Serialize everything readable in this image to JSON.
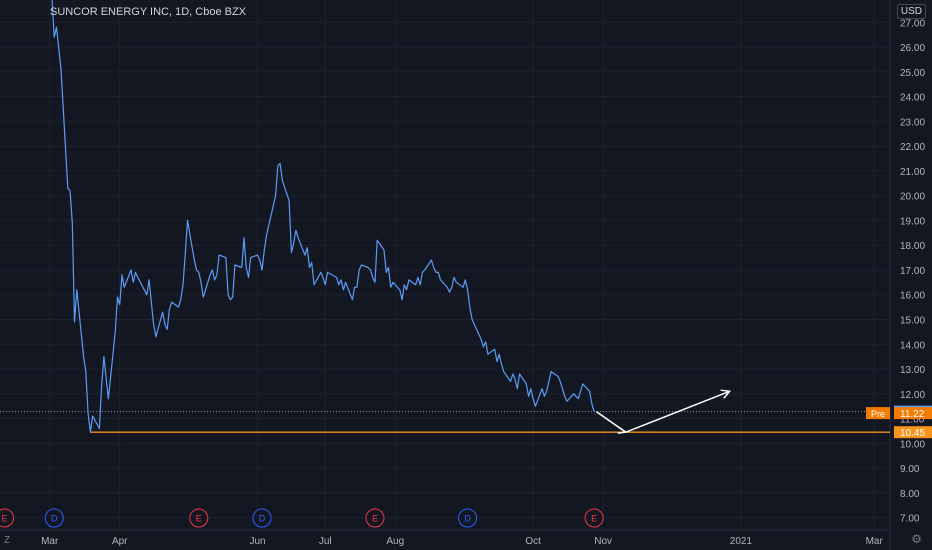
{
  "header": {
    "title": "SUNCOR ENERGY INC, 1D, Cboe BZX",
    "currency": "USD"
  },
  "corner": {
    "left_label": "Z",
    "right_icon": "gear-icon"
  },
  "colors": {
    "background": "#131722",
    "line": "#5b9cf6",
    "support": "#f7931a",
    "arrow": "#ffffff",
    "grid": "#1e222d",
    "axis_text": "#b2b5be",
    "dividend": "#2962ff",
    "earnings": "#f23645",
    "last_price": "#5b9cf6",
    "pre_market": "#f57c00"
  },
  "chart_data": {
    "type": "line",
    "title": "SUNCOR ENERGY INC, 1D, Cboe BZX",
    "xlabel": "",
    "ylabel": "",
    "y_ticks": [
      "7.00",
      "8.00",
      "9.00",
      "10.00",
      "11.00",
      "12.00",
      "13.00",
      "14.00",
      "15.00",
      "16.00",
      "17.00",
      "18.00",
      "19.00",
      "20.00",
      "21.00",
      "22.00",
      "23.00",
      "24.00",
      "25.00",
      "26.00",
      "27.00"
    ],
    "ylim": [
      6.5,
      27.9
    ],
    "x_ticks": [
      "Mar",
      "Apr",
      "Jun",
      "Jul",
      "Aug",
      "Oct",
      "Nov",
      "2021",
      "Mar"
    ],
    "x_tick_dates": [
      "2020-03-01",
      "2020-04-01",
      "2020-06-01",
      "2020-07-01",
      "2020-08-01",
      "2020-10-01",
      "2020-11-01",
      "2021-01-01",
      "2021-03-01"
    ],
    "xlim": [
      "2020-02-08",
      "2021-03-08"
    ],
    "grid": true,
    "series": [
      {
        "values": [
          [
            "2020-03-02",
            28.0
          ],
          [
            "2020-03-03",
            26.4
          ],
          [
            "2020-03-04",
            26.8
          ],
          [
            "2020-03-06",
            25.1
          ],
          [
            "2020-03-09",
            20.3
          ],
          [
            "2020-03-10",
            20.2
          ],
          [
            "2020-03-11",
            18.9
          ],
          [
            "2020-03-12",
            14.9
          ],
          [
            "2020-03-13",
            16.2
          ],
          [
            "2020-03-16",
            13.5
          ],
          [
            "2020-03-17",
            12.9
          ],
          [
            "2020-03-18",
            11.2
          ],
          [
            "2020-03-19",
            10.45
          ],
          [
            "2020-03-20",
            11.1
          ],
          [
            "2020-03-23",
            10.6
          ],
          [
            "2020-03-24",
            12.3
          ],
          [
            "2020-03-25",
            13.5
          ],
          [
            "2020-03-26",
            12.6
          ],
          [
            "2020-03-27",
            11.8
          ],
          [
            "2020-03-30",
            14.5
          ],
          [
            "2020-03-31",
            15.9
          ],
          [
            "2020-04-01",
            15.6
          ],
          [
            "2020-04-02",
            16.8
          ],
          [
            "2020-04-03",
            16.3
          ],
          [
            "2020-04-06",
            17.0
          ],
          [
            "2020-04-07",
            16.5
          ],
          [
            "2020-04-08",
            16.9
          ],
          [
            "2020-04-09",
            16.7
          ],
          [
            "2020-04-13",
            16.0
          ],
          [
            "2020-04-14",
            16.6
          ],
          [
            "2020-04-15",
            15.7
          ],
          [
            "2020-04-16",
            14.8
          ],
          [
            "2020-04-17",
            14.3
          ],
          [
            "2020-04-20",
            15.3
          ],
          [
            "2020-04-21",
            14.8
          ],
          [
            "2020-04-22",
            14.6
          ],
          [
            "2020-04-23",
            15.4
          ],
          [
            "2020-04-24",
            15.7
          ],
          [
            "2020-04-27",
            15.5
          ],
          [
            "2020-04-28",
            15.8
          ],
          [
            "2020-04-29",
            16.4
          ],
          [
            "2020-04-30",
            17.6
          ],
          [
            "2020-05-01",
            19.0
          ],
          [
            "2020-05-04",
            17.4
          ],
          [
            "2020-05-05",
            17.0
          ],
          [
            "2020-05-06",
            16.9
          ],
          [
            "2020-05-07",
            16.5
          ],
          [
            "2020-05-08",
            15.9
          ],
          [
            "2020-05-11",
            16.8
          ],
          [
            "2020-05-12",
            17.0
          ],
          [
            "2020-05-13",
            16.6
          ],
          [
            "2020-05-14",
            16.8
          ],
          [
            "2020-05-15",
            17.6
          ],
          [
            "2020-05-18",
            17.5
          ],
          [
            "2020-05-19",
            16.0
          ],
          [
            "2020-05-20",
            15.8
          ],
          [
            "2020-05-21",
            15.9
          ],
          [
            "2020-05-22",
            17.2
          ],
          [
            "2020-05-25",
            17.1
          ],
          [
            "2020-05-26",
            18.3
          ],
          [
            "2020-05-27",
            17.1
          ],
          [
            "2020-05-28",
            16.7
          ],
          [
            "2020-05-29",
            17.5
          ],
          [
            "2020-06-01",
            17.6
          ],
          [
            "2020-06-02",
            17.4
          ],
          [
            "2020-06-03",
            17.0
          ],
          [
            "2020-06-04",
            17.8
          ],
          [
            "2020-06-05",
            18.4
          ],
          [
            "2020-06-08",
            19.6
          ],
          [
            "2020-06-09",
            20.0
          ],
          [
            "2020-06-10",
            21.2
          ],
          [
            "2020-06-11",
            21.3
          ],
          [
            "2020-06-12",
            20.6
          ],
          [
            "2020-06-15",
            19.8
          ],
          [
            "2020-06-16",
            17.7
          ],
          [
            "2020-06-17",
            18.1
          ],
          [
            "2020-06-18",
            18.6
          ],
          [
            "2020-06-19",
            18.3
          ],
          [
            "2020-06-22",
            17.6
          ],
          [
            "2020-06-23",
            17.9
          ],
          [
            "2020-06-24",
            17.1
          ],
          [
            "2020-06-25",
            17.3
          ],
          [
            "2020-06-26",
            16.4
          ],
          [
            "2020-06-29",
            16.9
          ],
          [
            "2020-06-30",
            16.7
          ],
          [
            "2020-07-01",
            16.4
          ],
          [
            "2020-07-02",
            16.9
          ],
          [
            "2020-07-06",
            16.7
          ],
          [
            "2020-07-07",
            16.4
          ],
          [
            "2020-07-08",
            16.6
          ],
          [
            "2020-07-09",
            16.2
          ],
          [
            "2020-07-10",
            16.5
          ],
          [
            "2020-07-13",
            15.8
          ],
          [
            "2020-07-14",
            16.3
          ],
          [
            "2020-07-15",
            16.3
          ],
          [
            "2020-07-16",
            17.0
          ],
          [
            "2020-07-17",
            17.2
          ],
          [
            "2020-07-20",
            17.1
          ],
          [
            "2020-07-21",
            17.0
          ],
          [
            "2020-07-22",
            16.7
          ],
          [
            "2020-07-23",
            16.5
          ],
          [
            "2020-07-24",
            18.2
          ],
          [
            "2020-07-27",
            17.8
          ],
          [
            "2020-07-28",
            16.9
          ],
          [
            "2020-07-29",
            17.1
          ],
          [
            "2020-07-30",
            16.3
          ],
          [
            "2020-07-31",
            16.5
          ],
          [
            "2020-08-03",
            16.2
          ],
          [
            "2020-08-04",
            15.8
          ],
          [
            "2020-08-05",
            16.4
          ],
          [
            "2020-08-06",
            16.2
          ],
          [
            "2020-08-07",
            16.6
          ],
          [
            "2020-08-10",
            16.4
          ],
          [
            "2020-08-11",
            16.7
          ],
          [
            "2020-08-12",
            16.4
          ],
          [
            "2020-08-13",
            16.9
          ],
          [
            "2020-08-14",
            17.0
          ],
          [
            "2020-08-17",
            17.4
          ],
          [
            "2020-08-18",
            17.1
          ],
          [
            "2020-08-19",
            16.9
          ],
          [
            "2020-08-20",
            16.9
          ],
          [
            "2020-08-21",
            16.6
          ],
          [
            "2020-08-24",
            16.3
          ],
          [
            "2020-08-25",
            16.1
          ],
          [
            "2020-08-26",
            16.3
          ],
          [
            "2020-08-27",
            16.7
          ],
          [
            "2020-08-28",
            16.5
          ],
          [
            "2020-08-31",
            16.3
          ],
          [
            "2020-09-01",
            16.6
          ],
          [
            "2020-09-02",
            16.2
          ],
          [
            "2020-09-03",
            15.5
          ],
          [
            "2020-09-04",
            15.0
          ],
          [
            "2020-09-08",
            14.2
          ],
          [
            "2020-09-09",
            13.9
          ],
          [
            "2020-09-10",
            14.1
          ],
          [
            "2020-09-11",
            13.6
          ],
          [
            "2020-09-14",
            13.8
          ],
          [
            "2020-09-15",
            13.3
          ],
          [
            "2020-09-16",
            13.6
          ],
          [
            "2020-09-17",
            13.2
          ],
          [
            "2020-09-18",
            12.9
          ],
          [
            "2020-09-21",
            12.5
          ],
          [
            "2020-09-22",
            12.8
          ],
          [
            "2020-09-23",
            12.6
          ],
          [
            "2020-09-24",
            12.2
          ],
          [
            "2020-09-25",
            12.8
          ],
          [
            "2020-09-28",
            12.4
          ],
          [
            "2020-09-29",
            11.9
          ],
          [
            "2020-09-30",
            12.2
          ],
          [
            "2020-10-01",
            11.8
          ],
          [
            "2020-10-02",
            11.5
          ],
          [
            "2020-10-05",
            12.2
          ],
          [
            "2020-10-06",
            11.9
          ],
          [
            "2020-10-07",
            12.1
          ],
          [
            "2020-10-08",
            12.5
          ],
          [
            "2020-10-09",
            12.9
          ],
          [
            "2020-10-12",
            12.7
          ],
          [
            "2020-10-13",
            12.5
          ],
          [
            "2020-10-14",
            12.2
          ],
          [
            "2020-10-15",
            11.9
          ],
          [
            "2020-10-16",
            11.7
          ],
          [
            "2020-10-19",
            12.0
          ],
          [
            "2020-10-20",
            11.9
          ],
          [
            "2020-10-21",
            11.8
          ],
          [
            "2020-10-22",
            12.1
          ],
          [
            "2020-10-23",
            12.4
          ],
          [
            "2020-10-26",
            12.1
          ],
          [
            "2020-10-27",
            11.6
          ],
          [
            "2020-10-28",
            11.28
          ]
        ]
      }
    ],
    "horizontal_lines": [
      {
        "value": 10.45,
        "from": "2020-03-19",
        "to": "2021-03-08",
        "label": "10.45",
        "color": "#f7931a"
      }
    ],
    "price_labels": [
      {
        "value": 11.28,
        "label": "11.28",
        "color": "#5b9cf6",
        "style": "dotted"
      },
      {
        "value": 11.22,
        "label": "11.22",
        "prefix": "Pre",
        "color": "#f57c00"
      }
    ],
    "arrows": [
      {
        "points": [
          [
            "2020-10-29",
            11.28
          ],
          [
            "2020-11-11",
            10.45
          ],
          [
            "2020-12-27",
            12.1
          ]
        ],
        "color": "#ffffff"
      }
    ],
    "events": [
      {
        "type": "E",
        "date": "2020-02-10"
      },
      {
        "type": "D",
        "date": "2020-03-03"
      },
      {
        "type": "E",
        "date": "2020-05-06"
      },
      {
        "type": "D",
        "date": "2020-06-03"
      },
      {
        "type": "E",
        "date": "2020-07-23"
      },
      {
        "type": "D",
        "date": "2020-09-02"
      },
      {
        "type": "E",
        "date": "2020-10-28"
      }
    ]
  }
}
